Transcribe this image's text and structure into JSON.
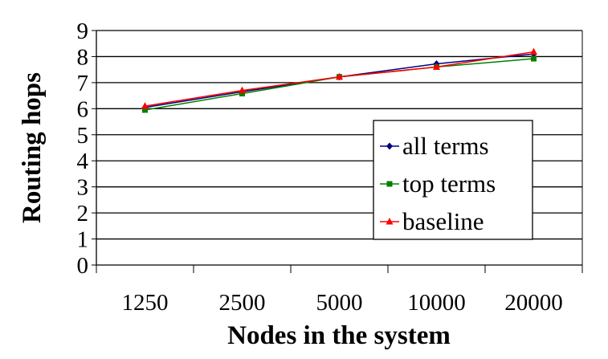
{
  "chart_data": {
    "type": "line",
    "title": "",
    "xlabel": "Nodes in the system",
    "ylabel": "Routing hops",
    "categories": [
      "1250",
      "2500",
      "5000",
      "10000",
      "20000"
    ],
    "ylim": [
      0,
      9
    ],
    "yticks": [
      "0",
      "1",
      "2",
      "3",
      "4",
      "5",
      "6",
      "7",
      "8",
      "9"
    ],
    "grid": true,
    "legend_position": "center-right",
    "series": [
      {
        "name": "all terms",
        "color": "#000080",
        "marker": "diamond",
        "values": [
          6.05,
          6.65,
          7.22,
          7.72,
          8.1
        ]
      },
      {
        "name": "top terms",
        "color": "#008000",
        "marker": "square",
        "values": [
          5.95,
          6.58,
          7.22,
          7.6,
          7.92
        ]
      },
      {
        "name": "baseline",
        "color": "#ff0000",
        "marker": "triangle",
        "values": [
          6.1,
          6.7,
          7.22,
          7.6,
          8.18
        ]
      }
    ]
  }
}
